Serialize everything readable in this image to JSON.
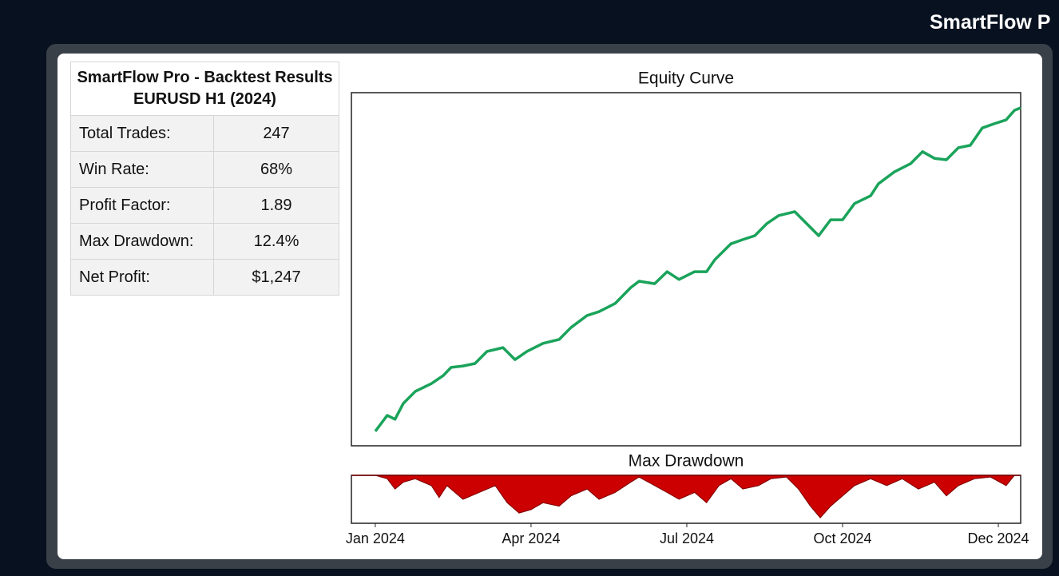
{
  "header": {
    "title": "SmartFlow P"
  },
  "table": {
    "title": [
      "SmartFlow Pro - Backtest Results",
      "EURUSD H1 (2024)"
    ],
    "rows": [
      [
        "Total Trades:",
        "247"
      ],
      [
        "Win Rate:",
        "68%"
      ],
      [
        "Profit Factor:",
        "1.89"
      ],
      [
        "Max Drawdown:",
        "12.4%"
      ],
      [
        "Net Profit:",
        "$1,247"
      ]
    ]
  },
  "chart_data": [
    {
      "type": "line",
      "title": "Equity Curve",
      "color": "#1aa35a",
      "x": [
        0,
        0.23,
        0.38,
        0.54,
        0.77,
        1.08,
        1.31,
        1.46,
        1.69,
        1.92,
        2.15,
        2.46,
        2.69,
        2.92,
        3.23,
        3.54,
        3.77,
        4.08,
        4.31,
        4.62,
        4.92,
        5.08,
        5.38,
        5.62,
        5.85,
        6.15,
        6.38,
        6.54,
        6.85,
        7.08,
        7.31,
        7.54,
        7.77,
        8.08,
        8.31,
        8.54,
        8.77,
        9.0,
        9.23,
        9.54,
        9.69,
        10.0,
        10.31,
        10.54,
        10.77,
        11.0,
        11.23,
        11.46,
        11.69,
        11.92,
        12.15,
        12.31,
        12.43
      ],
      "values": [
        4.1,
        8.6,
        7.5,
        12.0,
        15.4,
        17.6,
        19.9,
        22.2,
        22.6,
        23.3,
        26.7,
        27.8,
        24.4,
        26.7,
        29.0,
        30.1,
        33.5,
        36.9,
        38.0,
        40.3,
        44.8,
        46.6,
        45.9,
        49.3,
        47.1,
        49.3,
        49.3,
        52.7,
        57.2,
        58.4,
        59.5,
        62.9,
        65.2,
        66.3,
        62.9,
        59.5,
        64.0,
        64.0,
        68.6,
        70.8,
        74.2,
        77.6,
        79.9,
        83.3,
        81.4,
        81.0,
        84.4,
        85.1,
        90.0,
        91.2,
        92.3,
        95.0,
        95.7
      ],
      "xlim": [
        -0.46,
        12.43
      ],
      "ylim": [
        0,
        100
      ]
    },
    {
      "type": "area",
      "title": "Max Drawdown",
      "color": "#cc0000",
      "x": [
        0,
        0.23,
        0.38,
        0.54,
        0.77,
        1.08,
        1.23,
        1.38,
        1.69,
        2.0,
        2.31,
        2.54,
        2.77,
        3.0,
        3.23,
        3.54,
        3.77,
        4.08,
        4.31,
        4.62,
        4.92,
        5.08,
        5.38,
        5.62,
        5.85,
        6.15,
        6.38,
        6.62,
        6.85,
        7.08,
        7.38,
        7.62,
        7.92,
        8.15,
        8.38,
        8.57,
        8.77,
        9.0,
        9.23,
        9.54,
        9.85,
        10.15,
        10.46,
        10.77,
        11.0,
        11.23,
        11.54,
        11.85,
        12.15,
        12.31,
        12.43
      ],
      "values": [
        0,
        -1,
        -4,
        -2,
        -1,
        -3,
        -6.5,
        -3,
        -7,
        -5,
        -3,
        -8,
        -11,
        -10,
        -8,
        -9,
        -6,
        -4,
        -7,
        -5,
        -2,
        -0.5,
        -3,
        -5,
        -7,
        -5,
        -8,
        -3,
        -1,
        -4,
        -3,
        -1,
        -0.5,
        -4,
        -9,
        -12.4,
        -9,
        -6,
        -3,
        -1,
        -3,
        -1,
        -4,
        -2,
        -6,
        -3,
        -1,
        -0.5,
        -3,
        0,
        0
      ],
      "xlim": [
        -0.46,
        12.43
      ],
      "ylim": [
        -14,
        0
      ],
      "xticks": [
        {
          "value": 0,
          "label": "Jan 2024"
        },
        {
          "value": 3,
          "label": "Apr 2024"
        },
        {
          "value": 6,
          "label": "Jul 2024"
        },
        {
          "value": 9,
          "label": "Oct 2024"
        },
        {
          "value": 12,
          "label": "Dec 2024"
        }
      ]
    }
  ]
}
